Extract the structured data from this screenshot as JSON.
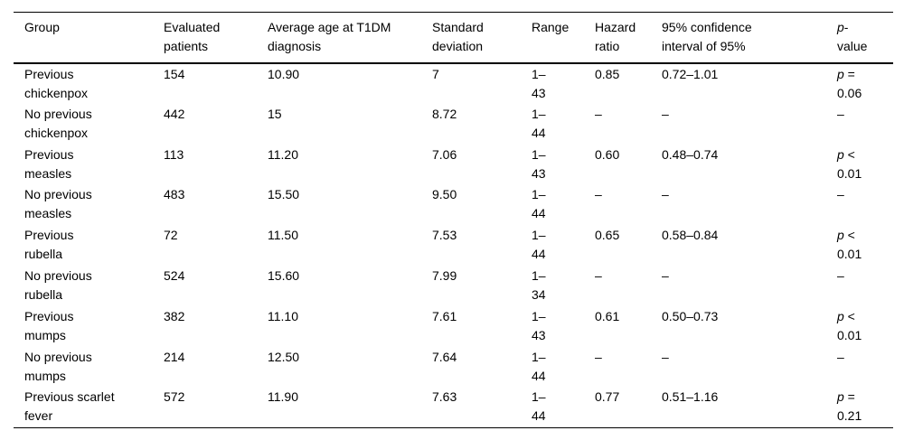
{
  "table": {
    "columns": [
      "Group",
      "Evaluated\npatients",
      "Average age at T1DM\ndiagnosis",
      "Standard\ndeviation",
      "Range",
      "Hazard\nratio",
      "95% confidence\ninterval of 95%"
    ],
    "p_header": {
      "symbol": "p",
      "rest": "-\nvalue"
    },
    "rows": [
      {
        "group": "Previous\nchickenpox",
        "evaluated_patients": "154",
        "average_age": "10.90",
        "standard_deviation": "7",
        "range": "1–\n43",
        "hazard_ratio": "0.85",
        "confidence_interval": "0.72–1.01",
        "p_value": {
          "symbol": "p",
          "operator": "=",
          "value": "0.06"
        }
      },
      {
        "group": "No previous\nchickenpox",
        "evaluated_patients": "442",
        "average_age": "15",
        "standard_deviation": "8.72",
        "range": "1–\n44",
        "hazard_ratio": "–",
        "confidence_interval": "–",
        "p_value": {
          "text": "–"
        }
      },
      {
        "group": "Previous\nmeasles",
        "evaluated_patients": "113",
        "average_age": "11.20",
        "standard_deviation": "7.06",
        "range": "1–\n43",
        "hazard_ratio": "0.60",
        "confidence_interval": "0.48–0.74",
        "p_value": {
          "symbol": "p",
          "operator": "<",
          "value": "0.01"
        }
      },
      {
        "group": "No previous\nmeasles",
        "evaluated_patients": "483",
        "average_age": "15.50",
        "standard_deviation": "9.50",
        "range": "1–\n44",
        "hazard_ratio": "–",
        "confidence_interval": "–",
        "p_value": {
          "text": "–"
        }
      },
      {
        "group": "Previous\nrubella",
        "evaluated_patients": "72",
        "average_age": "11.50",
        "standard_deviation": "7.53",
        "range": "1–\n44",
        "hazard_ratio": "0.65",
        "confidence_interval": "0.58–0.84",
        "p_value": {
          "symbol": "p",
          "operator": "<",
          "value": "0.01"
        }
      },
      {
        "group": "No previous\nrubella",
        "evaluated_patients": "524",
        "average_age": "15.60",
        "standard_deviation": "7.99",
        "range": "1–\n34",
        "hazard_ratio": "–",
        "confidence_interval": "–",
        "p_value": {
          "text": "–"
        }
      },
      {
        "group": "Previous\nmumps",
        "evaluated_patients": "382",
        "average_age": "11.10",
        "standard_deviation": "7.61",
        "range": "1–\n43",
        "hazard_ratio": "0.61",
        "confidence_interval": "0.50–0.73",
        "p_value": {
          "symbol": "p",
          "operator": "<",
          "value": "0.01"
        }
      },
      {
        "group": "No previous\nmumps",
        "evaluated_patients": "214",
        "average_age": "12.50",
        "standard_deviation": "7.64",
        "range": "1–\n44",
        "hazard_ratio": "–",
        "confidence_interval": "–",
        "p_value": {
          "text": "–"
        }
      },
      {
        "group": "Previous scarlet\nfever",
        "evaluated_patients": "572",
        "average_age": "11.90",
        "standard_deviation": "7.63",
        "range": "1–\n44",
        "hazard_ratio": "0.77",
        "confidence_interval": "0.51–1.16",
        "p_value": {
          "symbol": "p",
          "operator": "=",
          "value": "0.21"
        }
      }
    ]
  }
}
